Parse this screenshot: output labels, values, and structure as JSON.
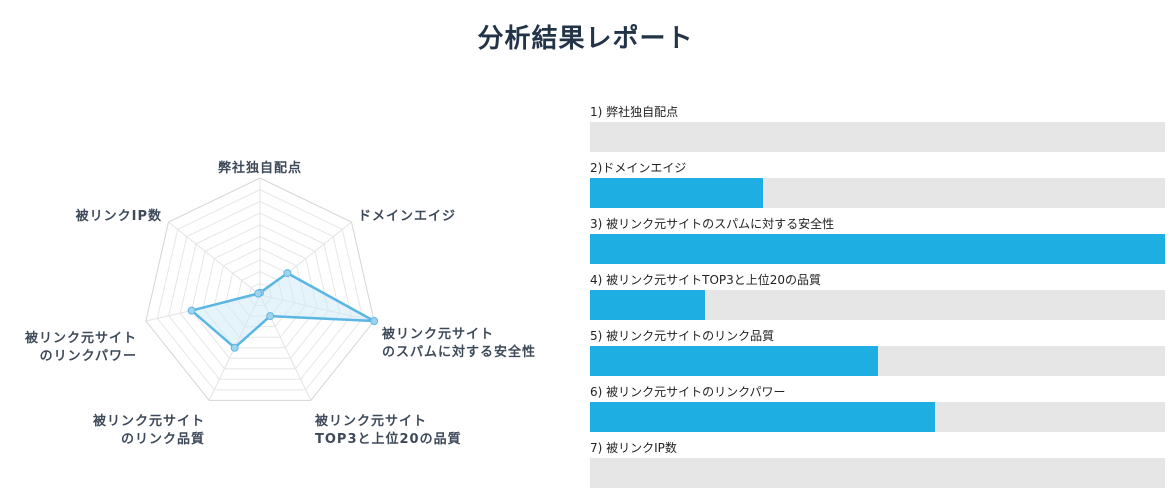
{
  "page": {
    "title": "分析結果レポート"
  },
  "colors": {
    "accent": "#1eaee2",
    "track": "#e6e6e6",
    "radar_line": "#5ab6e3",
    "radar_fill": "#cfe9f6"
  },
  "chart_data": [
    {
      "type": "radar",
      "title": "",
      "axes": [
        [
          "弊社独自配点"
        ],
        [
          "ドメインエイジ"
        ],
        [
          "被リンク元サイト",
          "のスパムに対する安全性"
        ],
        [
          "被リンク元サイト",
          "TOP3と上位20の品質"
        ],
        [
          "被リンク元サイト",
          "のリンク品質"
        ],
        [
          "被リンク元サイト",
          "のリンクパワー"
        ],
        [
          "被リンクIP数"
        ]
      ],
      "values": [
        0,
        30,
        100,
        20,
        50,
        60,
        0
      ],
      "range": [
        0,
        100
      ],
      "rings": 10
    },
    {
      "type": "bar",
      "orientation": "horizontal",
      "categories": [
        "1) 弊社独自配点",
        "2)ドメインエイジ",
        "3) 被リンク元サイトのスパムに対する安全性",
        "4) 被リンク元サイトTOP3と上位20の品質",
        "5) 被リンク元サイトのリンク品質",
        "6) 被リンク元サイトのリンクパワー",
        "7) 被リンクIP数"
      ],
      "values": [
        0,
        30,
        100,
        20,
        50,
        60,
        0
      ],
      "xlim": [
        0,
        100
      ]
    }
  ]
}
